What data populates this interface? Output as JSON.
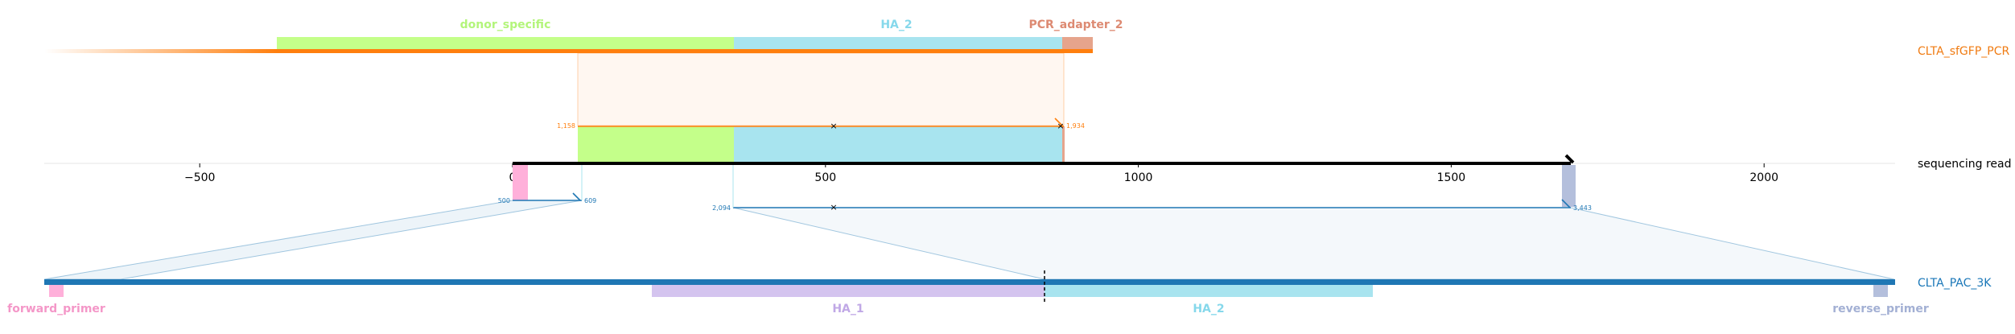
{
  "colors": {
    "donor_specific": "#c4ff8a",
    "HA_2": "#a8e4ef",
    "PCR_adapter_2": "#e6a48c",
    "forward_primer": "#ffb0da",
    "reverse_primer": "#b4bfdc",
    "HA_1": "#d4c4ef",
    "orange": "#ff7f0e",
    "blue": "#1f77b4",
    "top_label_orange": "#f07b12",
    "bottom_label_blue": "#1a77b8"
  },
  "top_track": {
    "name": "CLTA_sfGFP_PCR",
    "features": [
      {
        "id": "donor_specific",
        "label": "donor_specific",
        "color": "#c4ff8a",
        "label_color": "#b3f57a"
      },
      {
        "id": "HA_2",
        "label": "HA_2",
        "color": "#a8e4ef",
        "label_color": "#86d8eb"
      },
      {
        "id": "PCR_adapter_2",
        "label": "PCR_adapter_2",
        "color": "#e6a48c",
        "label_color": "#dd8a72"
      }
    ],
    "alignment": {
      "ref_start": 100,
      "ref_end": 875,
      "query_start": "1,158",
      "query_end": "1,934"
    }
  },
  "read_track": {
    "name": "sequencing read",
    "axis": {
      "min": -750,
      "max": 2220,
      "ticks": [
        {
          "value": -500,
          "label": "−500"
        },
        {
          "value": 0,
          "label": "0"
        },
        {
          "value": 500,
          "label": "500"
        },
        {
          "value": 1000,
          "label": "1000"
        },
        {
          "value": 1500,
          "label": "1500"
        },
        {
          "value": 2000,
          "label": "2000"
        }
      ]
    },
    "read_start": 0,
    "read_end": 1700,
    "features": [
      {
        "id": "forward_primer",
        "start": 0,
        "end": 22,
        "color": "#ffb0da"
      },
      {
        "id": "donor_specific",
        "start": 105,
        "end": 350,
        "color": "#c4ff8a"
      },
      {
        "id": "HA_2",
        "start": 350,
        "end": 875,
        "color": "#a8e4ef"
      },
      {
        "id": "PCR_adapter_2",
        "start": 875,
        "end": 882,
        "color": "#e6a48c"
      },
      {
        "id": "reverse_primer",
        "start": 1680,
        "end": 1702,
        "color": "#b4bfdc"
      }
    ]
  },
  "bottom_track": {
    "name": "CLTA_PAC_3K",
    "features": [
      {
        "id": "forward_primer",
        "label": "forward_primer",
        "color": "#ffb0da",
        "label_color": "#f497c8"
      },
      {
        "id": "HA_1",
        "label": "HA_1",
        "color": "#d4c4ef",
        "label_color": "#c0a8e6"
      },
      {
        "id": "HA_2",
        "label": "HA_2",
        "color": "#a8e4ef",
        "label_color": "#86d8eb"
      },
      {
        "id": "reverse_primer",
        "label": "reverse_primer",
        "color": "#b4bfdc",
        "label_color": "#a3b0d4"
      }
    ],
    "alignments": [
      {
        "ref_start": 0,
        "ref_end": 108,
        "query_start": "500",
        "query_end": "609"
      },
      {
        "ref_start": 350,
        "ref_end": 1700,
        "query_start": "2,094",
        "query_end": "3,443"
      }
    ]
  }
}
